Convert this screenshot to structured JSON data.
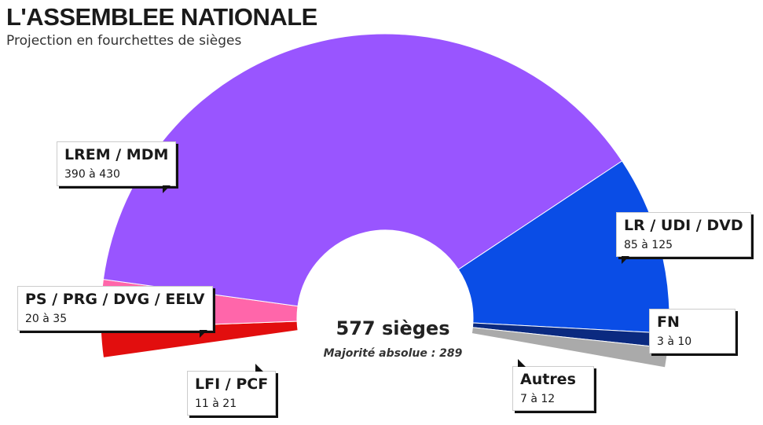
{
  "header": {
    "title": "L'ASSEMBLEE NATIONALE",
    "subtitle": "Projection en fourchettes de sièges"
  },
  "center": {
    "total": "577 sièges",
    "majority": "Majorité absolue : 289"
  },
  "chart_data": {
    "type": "pie",
    "subtype": "half-donut (hemicycle)",
    "title": "L'ASSEMBLEE NATIONALE",
    "subtitle": "Projection en fourchettes de sièges",
    "total_seats": 577,
    "absolute_majority": 289,
    "segments": [
      {
        "name": "LFI / PCF",
        "range": "11 à 21",
        "min": 11,
        "max": 21,
        "share_percent": 3.0,
        "color": "#e20e0e"
      },
      {
        "name": "PS / PRG / DVG / EELV",
        "range": "20 à 35",
        "min": 20,
        "max": 35,
        "share_percent": 5.0,
        "color": "#ff66aa"
      },
      {
        "name": "LREM / MDM",
        "range": "390 à 430",
        "min": 390,
        "max": 430,
        "share_percent": 70.0,
        "color": "#9955ff"
      },
      {
        "name": "LR / UDI / DVD",
        "range": "85 à 125",
        "min": 85,
        "max": 125,
        "share_percent": 18.5,
        "color": "#0a4de6"
      },
      {
        "name": "FN",
        "range": "3 à 10",
        "min": 3,
        "max": 10,
        "share_percent": 1.5,
        "color": "#0b2a80"
      },
      {
        "name": "Autres",
        "range": "7 à 12",
        "min": 7,
        "max": 12,
        "share_percent": 2.0,
        "color": "#aaaaaa"
      }
    ]
  }
}
